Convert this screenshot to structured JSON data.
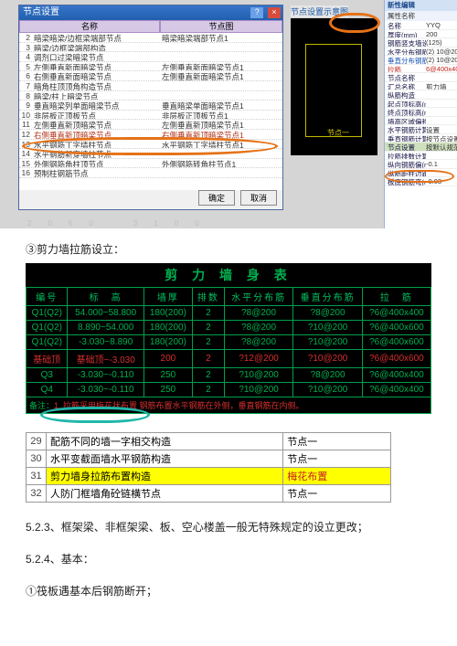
{
  "dialog": {
    "title": "节点设置",
    "col_headers": [
      "名称",
      "节点图"
    ],
    "rows": [
      {
        "n": 2,
        "a": "暗梁暗梁/边框梁端部节点",
        "b": "暗梁暗梁端部节点1"
      },
      {
        "n": 3,
        "a": "暗梁/边框梁端部构造",
        "b": ""
      },
      {
        "n": 4,
        "a": "调剂口过梁暗梁节点",
        "b": ""
      },
      {
        "n": 5,
        "a": "左侧垂直新面暗梁节点",
        "b": "左侧垂直新面暗梁节点1"
      },
      {
        "n": 6,
        "a": "右侧垂直新面暗梁节点",
        "b": "左侧垂直新面暗梁节点1"
      },
      {
        "n": 7,
        "a": "暗角柱顶顶角构造节点",
        "b": ""
      },
      {
        "n": 8,
        "a": "暗梁/柱上暗梁节点",
        "b": ""
      },
      {
        "n": 9,
        "a": "垂直暗梁列单面暗梁节点",
        "b": "垂直暗梁单面暗梁节点1"
      },
      {
        "n": 10,
        "a": "非层板正顶板节点",
        "b": "非层板正顶板节点1"
      },
      {
        "n": 11,
        "a": "左侧垂直新顶暗梁节点",
        "b": "左侧垂直新顶暗梁节点1"
      },
      {
        "n": 12,
        "a": "右侧垂直新顶暗梁节点",
        "b": "右侧垂直新顶暗梁节点1",
        "hl": true
      },
      {
        "n": 13,
        "a": "水平钢筋丁字墙柱节点",
        "b": "水平钢筋丁字墙柱节点1"
      },
      {
        "n": 14,
        "a": "水平钢筋新穿墙柱节点",
        "b": ""
      },
      {
        "n": 15,
        "a": "外侧钢筋角柱顶节点",
        "b": "外侧钢筋转角柱节点1"
      },
      {
        "n": 16,
        "a": "预制柱钢筋节点",
        "b": ""
      }
    ],
    "ok": "确定",
    "cancel": "取消"
  },
  "preview": {
    "title": "节点设置示意图",
    "node_label": "节点一"
  },
  "propgrid": {
    "header": "新性编辑",
    "sub": "属性名称",
    "rows": [
      {
        "k": "名称",
        "v": "YYQ"
      },
      {
        "k": "厚度(mm)",
        "v": "200"
      },
      {
        "k": "钢筋竖支墙设置",
        "v": "(125)"
      },
      {
        "k": "水平分布钢筋",
        "v": "(2) 10@200"
      },
      {
        "k": "垂直分布钢筋",
        "v": "(2) 10@200",
        "blue": true
      },
      {
        "k": "拉筋",
        "v": "6@400x400",
        "red": true
      },
      {
        "k": "节点名称",
        "v": ""
      },
      {
        "k": "汇总名称",
        "v": "剪力墙"
      },
      {
        "k": "纵筋构造",
        "v": ""
      },
      {
        "k": "起点顶标高(m)",
        "v": ""
      },
      {
        "k": "终点顶标高(m)",
        "v": ""
      },
      {
        "k": "墙高区域偏移",
        "v": ""
      },
      {
        "k": "水平钢筋计算",
        "v": "设置"
      },
      {
        "k": "垂直钢筋计算",
        "v": "按节点设置计算"
      },
      {
        "k": "节点设置",
        "v": "按默认规范要求",
        "sec": true
      },
      {
        "k": "拉筋排数计算",
        "v": ""
      },
      {
        "k": "纵向钢筋偏(m)",
        "v": "-0.1"
      },
      {
        "k": "纵筋距柱边距离",
        "v": ""
      },
      {
        "k": "板底钢筋弯(m)",
        "v": "-0.03"
      }
    ]
  },
  "text": {
    "line1": "③剪力墙拉筋设立：",
    "line_523": "5.2.3、框架梁、非框架梁、板、空心楼盖一般无特殊规定的设立更改；",
    "line_524": "5.2.4、基本：",
    "line_525": "①筏板遇基本后钢筋断开；"
  },
  "wall_table": {
    "caption": "剪 力 墙 身 表",
    "headers": [
      "编号",
      "标　高",
      "墙厚",
      "排数",
      "水平分布筋",
      "垂直分布筋",
      "拉　筋"
    ],
    "rows": [
      [
        "Q1(Q2)",
        "54.000~58.800",
        "180(200)",
        "2",
        "?8@200",
        "?8@200",
        "?6@400x400"
      ],
      [
        "Q1(Q2)",
        "8.890~54.000",
        "180(200)",
        "2",
        "?8@200",
        "?10@200",
        "?6@400x600"
      ],
      [
        "Q1(Q2)",
        "-3.030~8.890",
        "180(200)",
        "2",
        "?8@200",
        "?10@200",
        "?6@400x600"
      ],
      [
        "基础顶",
        "基础顶~-3.030",
        "200",
        "2",
        "?12@200",
        "?10@200",
        "?6@400x600",
        true
      ],
      [
        "Q3",
        "-3.030~-0.110",
        "250",
        "2",
        "?10@200",
        "?8@200",
        "?6@400x400"
      ],
      [
        "Q4",
        "-3.030~-0.110",
        "250",
        "2",
        "?10@200",
        "?10@200",
        "?6@400x400"
      ]
    ],
    "footer_left": "1. 拉筋采用梅花状布置",
    "footer_right": "钢筋布置水平钢筋在外侧，垂直钢筋在内侧。"
  },
  "small_table": {
    "rows": [
      {
        "n": 29,
        "a": "配筋不同的墙一字相交构造",
        "b": "节点一"
      },
      {
        "n": 30,
        "a": "水平变截面墙水平钢筋构造",
        "b": "节点一"
      },
      {
        "n": 31,
        "a": "剪力墙身拉筋布置构造",
        "b": "梅花布置",
        "hi": true
      },
      {
        "n": 32,
        "a": "人防门框墙角砼链横节点",
        "b": "节点一"
      }
    ]
  }
}
